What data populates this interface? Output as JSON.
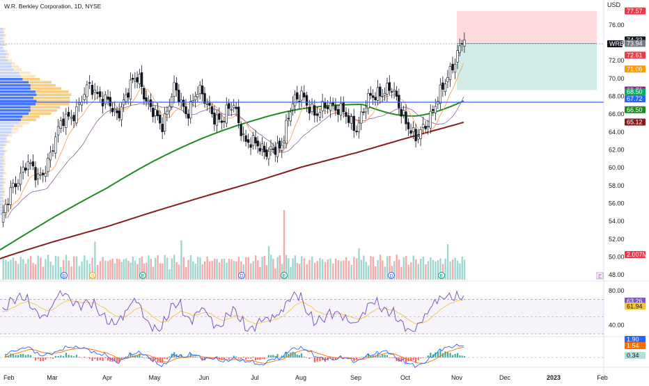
{
  "header": {
    "title": "W.R. Berkley Corporation, 1D, NYSE",
    "currency": "USD"
  },
  "symbol_tag": "WRB",
  "colors": {
    "up": "#26a69a",
    "down": "#ef5350",
    "ma_slow": "#8b1a1a",
    "ma_mid": "#1e8b1e",
    "ema_fast": "#f7a15c",
    "ema_slow": "#8e5f9e",
    "level_line": "#2962ff",
    "rsi": "#7e57c2",
    "rsi_signal": "#f3c73b",
    "macd": "#2962ff",
    "macd_signal": "#ff6d00"
  },
  "price_axis": {
    "min": 48,
    "max": 78,
    "ticks": [
      "76.00",
      "74.00",
      "72.00",
      "70.00",
      "68.00",
      "66.00",
      "64.00",
      "62.00",
      "60.00",
      "58.00",
      "56.00",
      "54.00",
      "52.00",
      "50.00",
      "48.00"
    ]
  },
  "price_tags": [
    {
      "label": "77.57",
      "value": 77.57,
      "color": "#f23645"
    },
    {
      "label": "74.33",
      "value": 74.33,
      "color": "#131722"
    },
    {
      "label": "73.94",
      "value": 73.94,
      "color": "#787b86"
    },
    {
      "label": "72.61",
      "value": 72.61,
      "color": "#f23645"
    },
    {
      "label": "71.06",
      "value": 71.06,
      "color": "#ff9800"
    },
    {
      "label": "68.71",
      "value": 68.71,
      "color": "#8e1d8e"
    },
    {
      "label": "68.50",
      "value": 68.5,
      "color": "#0fa968"
    },
    {
      "label": "67.72",
      "value": 67.72,
      "color": "#2962ff"
    },
    {
      "label": "66.50",
      "value": 66.5,
      "color": "#1e8b1e"
    },
    {
      "label": "65.12",
      "value": 65.12,
      "color": "#8b1a1a"
    },
    {
      "label": "2.007M",
      "value": 50.9,
      "color": "#f23645"
    }
  ],
  "months": [
    "Feb",
    "Mar",
    "Apr",
    "May",
    "Jun",
    "Jul",
    "Aug",
    "Sep",
    "Oct",
    "Nov",
    "Dec",
    "2023",
    "Feb"
  ],
  "chart_data": {
    "type": "candlestick",
    "title": "W.R. Berkley Corporation, 1D, NYSE",
    "ylim": [
      48,
      78
    ],
    "x_months": [
      "Feb",
      "Mar",
      "Apr",
      "May",
      "Jun",
      "Jul",
      "Aug",
      "Sep",
      "Oct",
      "Nov",
      "Dec",
      "2023",
      "Feb"
    ],
    "close_anchors": [
      {
        "month": "Feb",
        "close": 53.6
      },
      {
        "month": "Mar",
        "close": 58.5
      },
      {
        "month": "Apr",
        "close": 66.0
      },
      {
        "month": "May",
        "close": 67.2
      },
      {
        "month": "Jun",
        "close": 68.5
      },
      {
        "month": "Jul",
        "close": 67.0
      },
      {
        "month": "Aug",
        "close": 62.5
      },
      {
        "month": "Sep",
        "close": 66.2
      },
      {
        "month": "Oct",
        "close": 65.5
      },
      {
        "month": "Nov",
        "close": 74.33
      }
    ],
    "last_close": 74.33,
    "horizontal_level": 67.72,
    "position_box": {
      "target": 77.57,
      "entry": 73.94,
      "stop": 68.71
    },
    "ma_200_last": 65.12,
    "ma_100_last": 66.5,
    "volume_last": "2.007M",
    "rsi": {
      "ticks": [
        "80.00",
        "40.00"
      ],
      "levels": [
        70,
        30
      ],
      "value": "63.26",
      "signal": "61.94"
    },
    "macd": {
      "macd": "1.90",
      "signal": "1.54",
      "histogram": "0.34"
    },
    "events": [
      "D",
      "S",
      "E",
      "D",
      "E",
      "D",
      "E"
    ]
  }
}
